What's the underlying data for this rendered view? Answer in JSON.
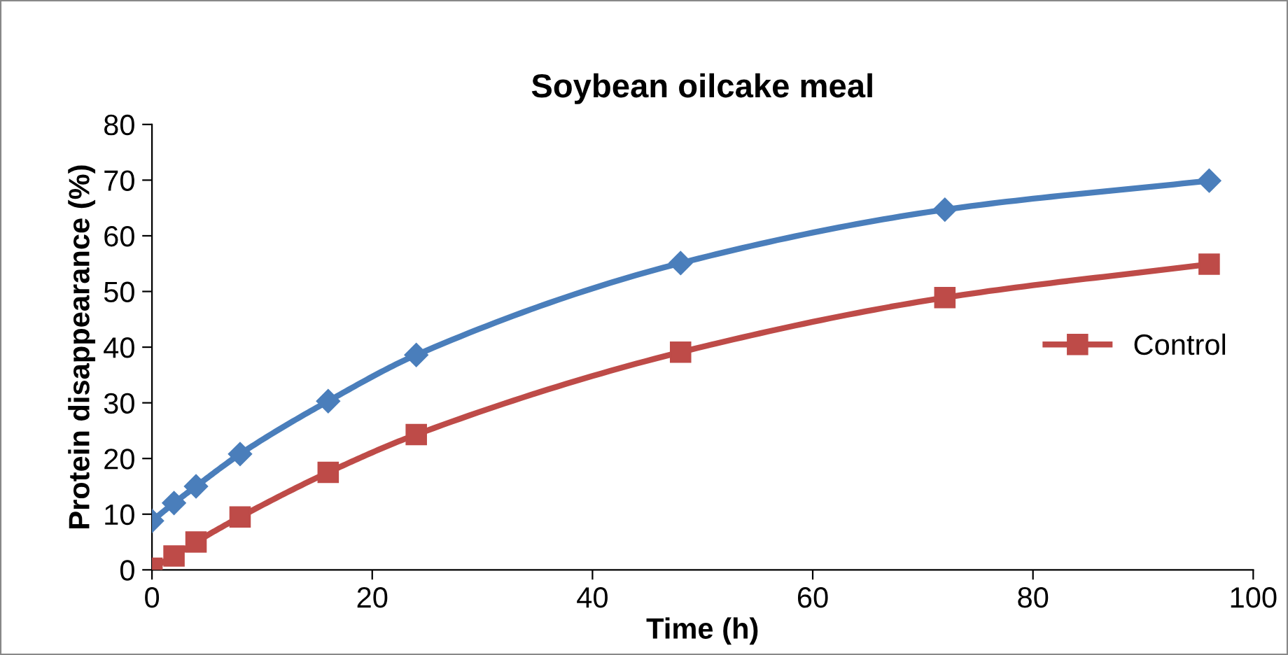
{
  "chart_data": {
    "type": "line",
    "title": "Soybean oilcake meal",
    "xlabel": "Time (h)",
    "ylabel": "Protein disappearance (%)",
    "x": [
      0,
      2,
      4,
      8,
      16,
      24,
      48,
      72,
      96
    ],
    "series": [
      {
        "color": "#4a7ebb",
        "marker": "diamond",
        "values": [
          8.8,
          12,
          15,
          20.8,
          30.3,
          38.6,
          55.1,
          64.7,
          69.9
        ]
      },
      {
        "name": "Control",
        "color": "#be4b48",
        "marker": "square",
        "values": [
          0.3,
          2.5,
          5,
          9.5,
          17.5,
          24.3,
          39.1,
          48.9,
          54.9
        ]
      }
    ],
    "xlim": [
      0,
      100
    ],
    "xticks": [
      0,
      20,
      40,
      60,
      80,
      100
    ],
    "ylim": [
      0,
      80
    ],
    "yticks": [
      0,
      10,
      20,
      30,
      40,
      50,
      60,
      70,
      80
    ],
    "grid": false,
    "legend": "right",
    "line_style": "solid"
  }
}
